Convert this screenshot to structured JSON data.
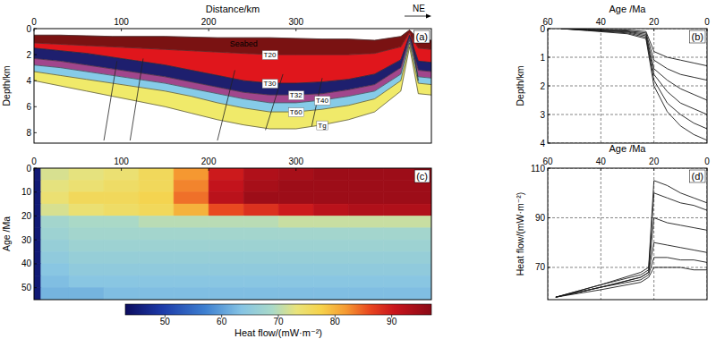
{
  "chart_data": [
    {
      "type": "cross_section",
      "title": "(a)",
      "x_label": "Distance/km",
      "y_label": "Depth/km",
      "x": [
        0,
        30,
        60,
        90,
        120,
        150,
        180,
        210,
        240,
        270,
        300,
        330,
        360,
        390,
        420,
        430,
        440,
        455
      ],
      "series": [
        {
          "name": "Seabed",
          "values": [
            0.5,
            0.5,
            0.55,
            0.6,
            0.6,
            0.6,
            0.65,
            0.7,
            0.7,
            0.7,
            0.75,
            0.8,
            0.8,
            0.9,
            0.6,
            0.1,
            0.8,
            0.9
          ]
        },
        {
          "name": "T20",
          "values": [
            1.1,
            1.2,
            1.3,
            1.4,
            1.5,
            1.6,
            1.7,
            1.8,
            1.9,
            2.0,
            2.0,
            2.0,
            2.0,
            1.9,
            1.4,
            0.3,
            1.5,
            1.6
          ]
        },
        {
          "name": "T30",
          "values": [
            1.5,
            1.7,
            1.9,
            2.2,
            2.5,
            2.8,
            3.2,
            3.6,
            4.0,
            4.2,
            4.2,
            4.1,
            3.9,
            3.5,
            2.4,
            0.5,
            2.5,
            2.6
          ]
        },
        {
          "name": "T32",
          "values": [
            2.3,
            2.5,
            2.8,
            3.1,
            3.4,
            3.7,
            4.1,
            4.5,
            4.9,
            5.1,
            5.1,
            5.0,
            4.7,
            4.3,
            3.0,
            0.7,
            3.2,
            3.3
          ]
        },
        {
          "name": "T40",
          "values": [
            2.8,
            3.0,
            3.3,
            3.6,
            3.9,
            4.2,
            4.6,
            5.0,
            5.4,
            5.7,
            5.7,
            5.5,
            5.2,
            4.8,
            3.5,
            0.9,
            3.7,
            3.8
          ]
        },
        {
          "name": "T60",
          "values": [
            3.3,
            3.6,
            3.9,
            4.2,
            4.5,
            4.8,
            5.2,
            5.7,
            6.1,
            6.4,
            6.4,
            6.2,
            5.9,
            5.4,
            4.0,
            1.1,
            4.2,
            4.3
          ]
        },
        {
          "name": "Tg",
          "values": [
            4.0,
            4.4,
            4.8,
            5.2,
            5.6,
            6.0,
            6.5,
            7.0,
            7.4,
            7.7,
            7.7,
            7.4,
            7.0,
            6.4,
            4.8,
            1.4,
            5.0,
            5.1
          ]
        }
      ],
      "colors": [
        "#7a1212",
        "#e0161c",
        "#1e1f6e",
        "#a1468c",
        "#86cbe8",
        "#f0ea6a"
      ],
      "faults": [
        {
          "x": [
            95,
            80
          ],
          "depth": [
            2.5,
            8.6
          ]
        },
        {
          "x": [
            125,
            110
          ],
          "depth": [
            2.3,
            8.6
          ]
        },
        {
          "x": [
            230,
            210
          ],
          "depth": [
            3.2,
            8.6
          ]
        },
        {
          "x": [
            285,
            265
          ],
          "depth": [
            3.5,
            7.8
          ]
        },
        {
          "x": [
            330,
            318
          ],
          "depth": [
            3.8,
            7.5
          ]
        },
        {
          "x": [
            432,
            440
          ],
          "depth": [
            0.5,
            4.0
          ]
        }
      ],
      "annotations": [
        {
          "text": "NE"
        }
      ],
      "xlim": [
        0,
        455
      ],
      "xticks": [
        0,
        100,
        200,
        300
      ],
      "ylim": [
        0,
        8.8
      ],
      "yticks": [
        0,
        2,
        4,
        6,
        8
      ]
    },
    {
      "type": "line",
      "title": "(b)",
      "x_label": "Age /Ma",
      "y_label": "Depth/km",
      "x": [
        55,
        45,
        30,
        23,
        20,
        15,
        10,
        5,
        0
      ],
      "series": [
        {
          "color": "#1a1a1a",
          "values": [
            0,
            0.02,
            0.05,
            0.1,
            0.8,
            1.0,
            1.1,
            1.2,
            1.3
          ]
        },
        {
          "color": "#1a1a1a",
          "values": [
            0,
            0.03,
            0.08,
            0.15,
            1.1,
            1.4,
            1.6,
            1.7,
            1.8
          ]
        },
        {
          "color": "#1a1a1a",
          "values": [
            0,
            0.04,
            0.1,
            0.2,
            1.4,
            1.8,
            2.1,
            2.3,
            2.5
          ]
        },
        {
          "color": "#1a1a1a",
          "values": [
            0,
            0.05,
            0.12,
            0.25,
            1.6,
            2.2,
            2.6,
            2.8,
            3.0
          ]
        },
        {
          "color": "#1a1a1a",
          "values": [
            0,
            0.06,
            0.15,
            0.3,
            1.8,
            2.6,
            3.0,
            3.3,
            3.5
          ]
        },
        {
          "color": "#1a1a1a",
          "values": [
            0,
            0.07,
            0.18,
            0.35,
            2.0,
            2.9,
            3.4,
            3.7,
            3.9
          ]
        }
      ],
      "xlim": [
        60,
        0
      ],
      "xticks": [
        60,
        40,
        20,
        0
      ],
      "ylim": [
        0,
        4
      ],
      "yticks": [
        0,
        1,
        2,
        3,
        4
      ],
      "grid": true
    },
    {
      "type": "heatmap",
      "title": "(c)",
      "y_label": "Age /Ma",
      "x_edges": [
        0,
        8,
        40,
        80,
        120,
        160,
        200,
        240,
        280,
        320,
        360,
        400,
        455
      ],
      "y_edges": [
        0,
        5,
        10,
        15,
        20,
        25,
        30,
        35,
        40,
        45,
        50,
        55
      ],
      "cells": [
        [
          45,
          72,
          73,
          74,
          76,
          82,
          90,
          93,
          94,
          95,
          95,
          95
        ],
        [
          45,
          73,
          74,
          75,
          76,
          83,
          91,
          94,
          95,
          95,
          95,
          95
        ],
        [
          45,
          74,
          76,
          76,
          77,
          84,
          92,
          95,
          95,
          95,
          95,
          95
        ],
        [
          45,
          72,
          74,
          75,
          76,
          80,
          86,
          88,
          90,
          92,
          93,
          93
        ],
        [
          45,
          68,
          69,
          69,
          70,
          70,
          70,
          70,
          71,
          71,
          71,
          71
        ],
        [
          45,
          67,
          68,
          68,
          68,
          68,
          68,
          68,
          68,
          68,
          68,
          68
        ],
        [
          45,
          66,
          67,
          67,
          67,
          67,
          67,
          67,
          67,
          67,
          67,
          67
        ],
        [
          45,
          65,
          66,
          66,
          66,
          66,
          66,
          66,
          66,
          66,
          66,
          66
        ],
        [
          45,
          64,
          65,
          65,
          65,
          65,
          65,
          65,
          65,
          65,
          65,
          65
        ],
        [
          45,
          63,
          64,
          64,
          64,
          64,
          64,
          64,
          64,
          64,
          64,
          64
        ],
        [
          45,
          62,
          62,
          63,
          63,
          63,
          63,
          63,
          63,
          63,
          63,
          63
        ]
      ],
      "colorbar": {
        "lim": [
          43,
          97
        ],
        "ticks": [
          50,
          60,
          70,
          80,
          90
        ],
        "label": "Heat flow/(mW·m⁻²)"
      },
      "xlim": [
        0,
        455
      ],
      "xticks": [
        0,
        100,
        200,
        300
      ],
      "ylim": [
        0,
        55
      ],
      "yticks": [
        0,
        10,
        20,
        30,
        40,
        50
      ]
    },
    {
      "type": "line",
      "title": "(d)",
      "x_label": "Age /Ma",
      "y_label": "Heat flow/(mW·m⁻²)",
      "x": [
        57,
        40,
        25,
        22,
        20,
        15,
        10,
        5,
        0
      ],
      "series": [
        {
          "color": "#1a1a1a",
          "values": [
            58,
            63,
            68,
            70,
            105,
            103,
            100,
            98,
            96
          ]
        },
        {
          "color": "#1a1a1a",
          "values": [
            58,
            63,
            67,
            69,
            100,
            98,
            96,
            95,
            93
          ]
        },
        {
          "color": "#1a1a1a",
          "values": [
            58,
            62,
            66,
            68,
            90,
            88,
            87,
            86,
            85
          ]
        },
        {
          "color": "#1a1a1a",
          "values": [
            58,
            62,
            66,
            68,
            80,
            79,
            78,
            77,
            76
          ]
        },
        {
          "color": "#1a1a1a",
          "values": [
            58,
            62,
            65,
            67,
            74,
            74,
            73,
            73,
            72
          ]
        },
        {
          "color": "#1a1a1a",
          "values": [
            58,
            61,
            64,
            66,
            70,
            70,
            70,
            69,
            69
          ]
        }
      ],
      "xlim": [
        60,
        0
      ],
      "xticks": [
        60,
        40,
        20,
        0
      ],
      "ylim": [
        57,
        110
      ],
      "yticks": [
        70,
        90,
        110
      ],
      "grid": true
    }
  ]
}
